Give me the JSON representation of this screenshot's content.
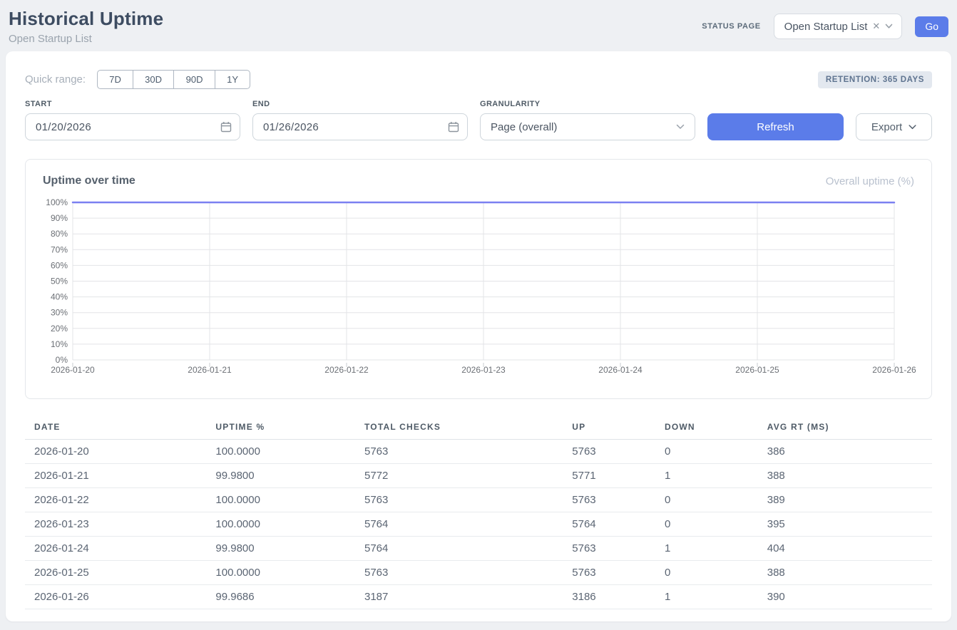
{
  "header": {
    "title": "Historical Uptime",
    "subtitle": "Open Startup List",
    "status_page_label": "STATUS PAGE",
    "status_page_value": "Open Startup List",
    "go_label": "Go"
  },
  "icons": {
    "clear": "✕"
  },
  "filters": {
    "quick_range_label": "Quick range:",
    "quick_ranges": [
      "7D",
      "30D",
      "90D",
      "1Y"
    ],
    "retention_badge": "RETENTION: 365 DAYS",
    "start_label": "START",
    "start_value": "01/20/2026",
    "end_label": "END",
    "end_value": "01/26/2026",
    "granularity_label": "GRANULARITY",
    "granularity_value": "Page (overall)",
    "refresh_label": "Refresh",
    "export_label": "Export"
  },
  "chart_card": {
    "title": "Uptime over time",
    "legend": "Overall uptime (%)"
  },
  "chart_data": {
    "type": "line",
    "title": "Uptime over time",
    "x": [
      "2026-01-20",
      "2026-01-21",
      "2026-01-22",
      "2026-01-23",
      "2026-01-24",
      "2026-01-25",
      "2026-01-26"
    ],
    "series": [
      {
        "name": "Overall uptime (%)",
        "values": [
          100.0,
          99.98,
          100.0,
          100.0,
          99.98,
          100.0,
          99.9686
        ]
      }
    ],
    "ylim": [
      0,
      100
    ],
    "y_tick_step": 10,
    "y_tick_suffix": "%",
    "grid": true,
    "legend_position": "top-right",
    "line_color": "#7b80f1",
    "grid_color": "#e3e4e7",
    "tick_color": "#c9cdd2",
    "axis_label_color": "#6b6f75"
  },
  "table": {
    "columns": [
      "DATE",
      "UPTIME %",
      "TOTAL CHECKS",
      "UP",
      "DOWN",
      "AVG RT (MS)"
    ],
    "rows": [
      [
        "2026-01-20",
        "100.0000",
        "5763",
        "5763",
        "0",
        "386"
      ],
      [
        "2026-01-21",
        "99.9800",
        "5772",
        "5771",
        "1",
        "388"
      ],
      [
        "2026-01-22",
        "100.0000",
        "5763",
        "5763",
        "0",
        "389"
      ],
      [
        "2026-01-23",
        "100.0000",
        "5764",
        "5764",
        "0",
        "395"
      ],
      [
        "2026-01-24",
        "99.9800",
        "5764",
        "5763",
        "1",
        "404"
      ],
      [
        "2026-01-25",
        "100.0000",
        "5763",
        "5763",
        "0",
        "388"
      ],
      [
        "2026-01-26",
        "99.9686",
        "3187",
        "3186",
        "1",
        "390"
      ]
    ]
  },
  "colors": {
    "accent": "#5b7ce9",
    "line": "#7b80f1",
    "page_bg": "#eef0f3"
  }
}
